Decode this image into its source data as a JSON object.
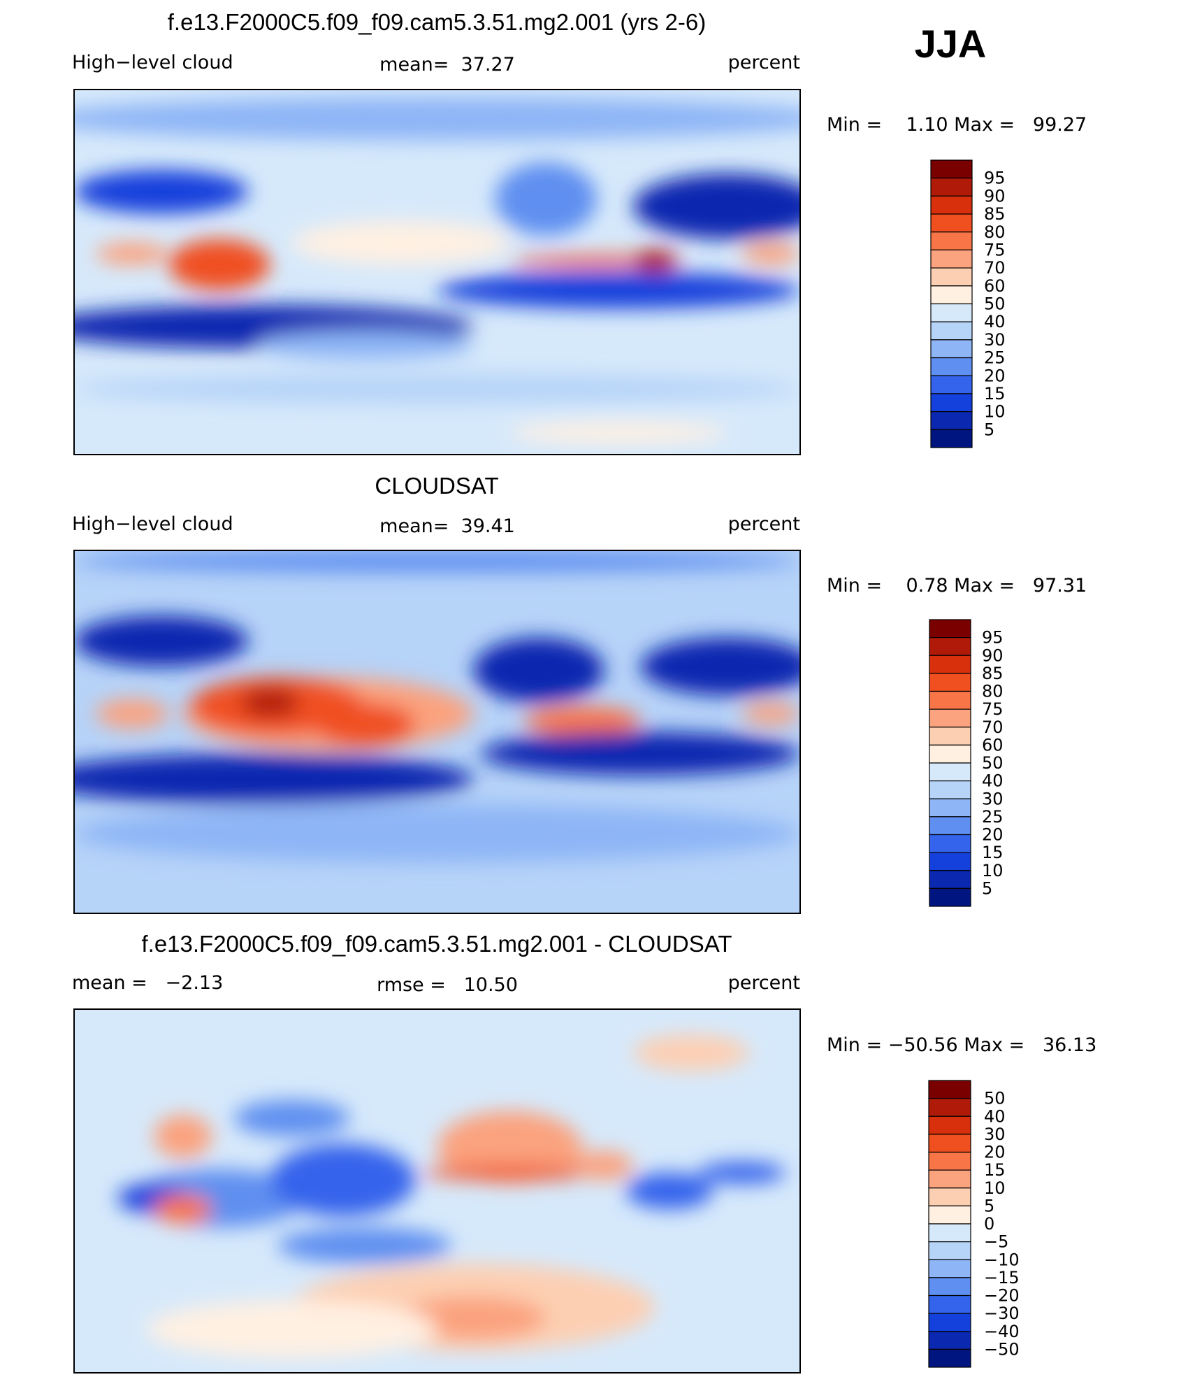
{
  "figure_label": "JJA",
  "panels": [
    {
      "title": "f.e13.F2000C5.f09_f09.cam5.3.51.mg2.001 (yrs 2-6)",
      "left_label": "High−level cloud",
      "center_label": "mean=  37.27",
      "right_label": "percent",
      "min_max": "Min =    1.10 Max =   99.27",
      "colorbar": {
        "labels": [
          "95",
          "90",
          "85",
          "80",
          "75",
          "70",
          "60",
          "50",
          "40",
          "30",
          "25",
          "20",
          "15",
          "10",
          "5"
        ],
        "colors": [
          "#7a0000",
          "#b01a08",
          "#d8300c",
          "#f05020",
          "#f87548",
          "#fba27e",
          "#fdcfb2",
          "#fff0e2",
          "#d6e9fb",
          "#b6d3f8",
          "#8eb5f6",
          "#5f8ff0",
          "#3463ec",
          "#1441dc",
          "#0a28b0",
          "#001580"
        ]
      }
    },
    {
      "title": "CLOUDSAT",
      "left_label": "High−level cloud",
      "center_label": "mean=  39.41",
      "right_label": "percent",
      "min_max": "Min =    0.78 Max =   97.31",
      "colorbar": {
        "labels": [
          "95",
          "90",
          "85",
          "80",
          "75",
          "70",
          "60",
          "50",
          "40",
          "30",
          "25",
          "20",
          "15",
          "10",
          "5"
        ],
        "colors": [
          "#7a0000",
          "#b01a08",
          "#d8300c",
          "#f05020",
          "#f87548",
          "#fba27e",
          "#fdcfb2",
          "#fff0e2",
          "#d6e9fb",
          "#b6d3f8",
          "#8eb5f6",
          "#5f8ff0",
          "#3463ec",
          "#1441dc",
          "#0a28b0",
          "#001580"
        ]
      }
    },
    {
      "title": "f.e13.F2000C5.f09_f09.cam5.3.51.mg2.001 - CLOUDSAT",
      "left_label": "mean =   −2.13",
      "center_label": "rmse =   10.50",
      "right_label": "percent",
      "min_max": "Min = −50.56 Max =   36.13",
      "colorbar": {
        "labels": [
          "50",
          "40",
          "30",
          "20",
          "15",
          "10",
          "5",
          "0",
          "−5",
          "−10",
          "−15",
          "−20",
          "−30",
          "−40",
          "−50"
        ],
        "colors": [
          "#7a0000",
          "#b01a08",
          "#d8300c",
          "#f05020",
          "#f87548",
          "#fba27e",
          "#fdcfb2",
          "#fff0e2",
          "#d6e9fb",
          "#b6d3f8",
          "#8eb5f6",
          "#5f8ff0",
          "#3463ec",
          "#1441dc",
          "#0a28b0",
          "#001580"
        ]
      }
    }
  ]
}
